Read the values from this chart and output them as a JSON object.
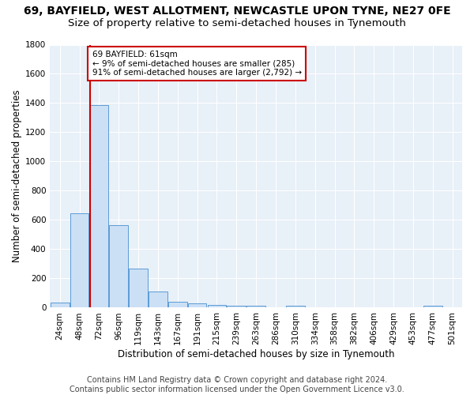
{
  "title1": "69, BAYFIELD, WEST ALLOTMENT, NEWCASTLE UPON TYNE, NE27 0FE",
  "title2": "Size of property relative to semi-detached houses in Tynemouth",
  "xlabel": "Distribution of semi-detached houses by size in Tynemouth",
  "ylabel": "Number of semi-detached properties",
  "bar_color": "#cce0f5",
  "bar_edge_color": "#5b9bd5",
  "bg_color": "#e8f0f8",
  "grid_color": "white",
  "categories": [
    "24sqm",
    "48sqm",
    "72sqm",
    "96sqm",
    "119sqm",
    "143sqm",
    "167sqm",
    "191sqm",
    "215sqm",
    "239sqm",
    "263sqm",
    "286sqm",
    "310sqm",
    "334sqm",
    "358sqm",
    "382sqm",
    "406sqm",
    "429sqm",
    "453sqm",
    "477sqm",
    "501sqm"
  ],
  "values": [
    35,
    645,
    1385,
    565,
    270,
    110,
    38,
    28,
    20,
    15,
    12,
    0,
    15,
    0,
    0,
    0,
    0,
    0,
    0,
    15,
    0
  ],
  "ylim": [
    0,
    1800
  ],
  "yticks": [
    0,
    200,
    400,
    600,
    800,
    1000,
    1200,
    1400,
    1600,
    1800
  ],
  "vline_x": 1.55,
  "vline_color": "#cc0000",
  "annotation_text": "69 BAYFIELD: 61sqm\n← 9% of semi-detached houses are smaller (285)\n91% of semi-detached houses are larger (2,792) →",
  "footer1": "Contains HM Land Registry data © Crown copyright and database right 2024.",
  "footer2": "Contains public sector information licensed under the Open Government Licence v3.0.",
  "title1_fontsize": 10,
  "title2_fontsize": 9.5,
  "axis_fontsize": 8.5,
  "tick_fontsize": 7.5,
  "footer_fontsize": 7
}
